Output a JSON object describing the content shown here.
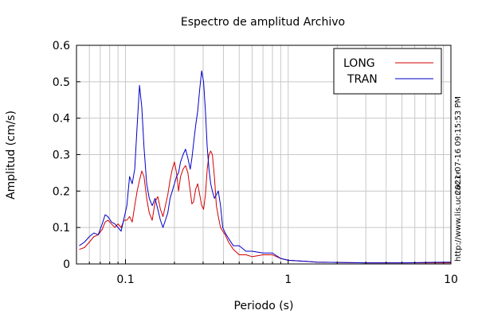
{
  "chart_data": {
    "type": "line",
    "title": "Espectro de amplitud Archivo",
    "xlabel": "Periodo (s)",
    "ylabel": "Amplitud (cm/s)",
    "x_scale": "log",
    "xlim": [
      0.05,
      10
    ],
    "ylim": [
      0,
      0.6
    ],
    "grid": true,
    "x_ticks": [
      0.1,
      1,
      10
    ],
    "x_tick_labels": [
      "0.1",
      "1",
      "10"
    ],
    "y_ticks": [
      0,
      0.1,
      0.2,
      0.3,
      0.4,
      0.5,
      0.6
    ],
    "y_tick_labels": [
      "0",
      "0.1",
      "0.2",
      "0.3",
      "0.4",
      "0.5",
      "0.6"
    ],
    "legend_position": "top-right",
    "series": [
      {
        "name": "LONG",
        "color": "#d40000",
        "points": [
          [
            0.052,
            0.04
          ],
          [
            0.056,
            0.045
          ],
          [
            0.06,
            0.06
          ],
          [
            0.064,
            0.075
          ],
          [
            0.068,
            0.08
          ],
          [
            0.072,
            0.095
          ],
          [
            0.075,
            0.115
          ],
          [
            0.078,
            0.12
          ],
          [
            0.082,
            0.11
          ],
          [
            0.086,
            0.1
          ],
          [
            0.09,
            0.11
          ],
          [
            0.094,
            0.1
          ],
          [
            0.098,
            0.12
          ],
          [
            0.102,
            0.12
          ],
          [
            0.106,
            0.13
          ],
          [
            0.11,
            0.115
          ],
          [
            0.114,
            0.16
          ],
          [
            0.118,
            0.2
          ],
          [
            0.122,
            0.23
          ],
          [
            0.126,
            0.255
          ],
          [
            0.13,
            0.24
          ],
          [
            0.135,
            0.18
          ],
          [
            0.14,
            0.14
          ],
          [
            0.146,
            0.12
          ],
          [
            0.152,
            0.17
          ],
          [
            0.158,
            0.185
          ],
          [
            0.164,
            0.15
          ],
          [
            0.17,
            0.13
          ],
          [
            0.176,
            0.16
          ],
          [
            0.182,
            0.19
          ],
          [
            0.188,
            0.23
          ],
          [
            0.194,
            0.26
          ],
          [
            0.2,
            0.28
          ],
          [
            0.206,
            0.25
          ],
          [
            0.212,
            0.2
          ],
          [
            0.218,
            0.24
          ],
          [
            0.226,
            0.26
          ],
          [
            0.234,
            0.27
          ],
          [
            0.242,
            0.25
          ],
          [
            0.25,
            0.2
          ],
          [
            0.256,
            0.165
          ],
          [
            0.262,
            0.17
          ],
          [
            0.27,
            0.205
          ],
          [
            0.278,
            0.22
          ],
          [
            0.286,
            0.19
          ],
          [
            0.294,
            0.16
          ],
          [
            0.302,
            0.15
          ],
          [
            0.31,
            0.19
          ],
          [
            0.318,
            0.26
          ],
          [
            0.326,
            0.3
          ],
          [
            0.334,
            0.31
          ],
          [
            0.342,
            0.3
          ],
          [
            0.352,
            0.24
          ],
          [
            0.362,
            0.16
          ],
          [
            0.372,
            0.13
          ],
          [
            0.384,
            0.1
          ],
          [
            0.396,
            0.09
          ],
          [
            0.41,
            0.08
          ],
          [
            0.43,
            0.06
          ],
          [
            0.46,
            0.04
          ],
          [
            0.5,
            0.025
          ],
          [
            0.55,
            0.025
          ],
          [
            0.6,
            0.02
          ],
          [
            0.7,
            0.025
          ],
          [
            0.8,
            0.025
          ],
          [
            0.9,
            0.015
          ],
          [
            1.0,
            0.01
          ],
          [
            1.2,
            0.008
          ],
          [
            1.5,
            0.005
          ],
          [
            2.0,
            0.004
          ],
          [
            3.0,
            0.003
          ],
          [
            5.0,
            0.003
          ],
          [
            7.0,
            0.003
          ],
          [
            10.0,
            0.003
          ]
        ]
      },
      {
        "name": "TRAN",
        "color": "#0000c8",
        "points": [
          [
            0.052,
            0.05
          ],
          [
            0.056,
            0.06
          ],
          [
            0.06,
            0.075
          ],
          [
            0.064,
            0.085
          ],
          [
            0.068,
            0.08
          ],
          [
            0.072,
            0.11
          ],
          [
            0.075,
            0.135
          ],
          [
            0.078,
            0.13
          ],
          [
            0.082,
            0.115
          ],
          [
            0.086,
            0.11
          ],
          [
            0.09,
            0.1
          ],
          [
            0.094,
            0.09
          ],
          [
            0.098,
            0.125
          ],
          [
            0.102,
            0.16
          ],
          [
            0.106,
            0.24
          ],
          [
            0.11,
            0.22
          ],
          [
            0.114,
            0.26
          ],
          [
            0.118,
            0.38
          ],
          [
            0.122,
            0.49
          ],
          [
            0.126,
            0.43
          ],
          [
            0.13,
            0.32
          ],
          [
            0.135,
            0.22
          ],
          [
            0.14,
            0.18
          ],
          [
            0.146,
            0.16
          ],
          [
            0.152,
            0.18
          ],
          [
            0.158,
            0.15
          ],
          [
            0.164,
            0.12
          ],
          [
            0.17,
            0.1
          ],
          [
            0.176,
            0.12
          ],
          [
            0.182,
            0.14
          ],
          [
            0.188,
            0.18
          ],
          [
            0.194,
            0.2
          ],
          [
            0.2,
            0.22
          ],
          [
            0.206,
            0.24
          ],
          [
            0.212,
            0.25
          ],
          [
            0.218,
            0.28
          ],
          [
            0.226,
            0.3
          ],
          [
            0.234,
            0.315
          ],
          [
            0.242,
            0.29
          ],
          [
            0.25,
            0.26
          ],
          [
            0.256,
            0.29
          ],
          [
            0.262,
            0.33
          ],
          [
            0.27,
            0.38
          ],
          [
            0.278,
            0.42
          ],
          [
            0.286,
            0.48
          ],
          [
            0.294,
            0.53
          ],
          [
            0.302,
            0.5
          ],
          [
            0.31,
            0.42
          ],
          [
            0.318,
            0.32
          ],
          [
            0.326,
            0.26
          ],
          [
            0.334,
            0.22
          ],
          [
            0.342,
            0.2
          ],
          [
            0.352,
            0.18
          ],
          [
            0.362,
            0.19
          ],
          [
            0.372,
            0.2
          ],
          [
            0.384,
            0.16
          ],
          [
            0.396,
            0.1
          ],
          [
            0.41,
            0.085
          ],
          [
            0.43,
            0.07
          ],
          [
            0.46,
            0.05
          ],
          [
            0.5,
            0.05
          ],
          [
            0.55,
            0.035
          ],
          [
            0.6,
            0.035
          ],
          [
            0.7,
            0.03
          ],
          [
            0.8,
            0.03
          ],
          [
            0.9,
            0.015
          ],
          [
            1.0,
            0.01
          ],
          [
            1.2,
            0.008
          ],
          [
            1.5,
            0.005
          ],
          [
            2.0,
            0.004
          ],
          [
            3.0,
            0.003
          ],
          [
            5.0,
            0.003
          ],
          [
            7.0,
            0.004
          ],
          [
            10.0,
            0.005
          ]
        ]
      }
    ]
  },
  "side_labels": {
    "timestamp": "2021-07-16 09:15:53 PM",
    "url": "http://www.lis.ucr.ac.cr"
  }
}
